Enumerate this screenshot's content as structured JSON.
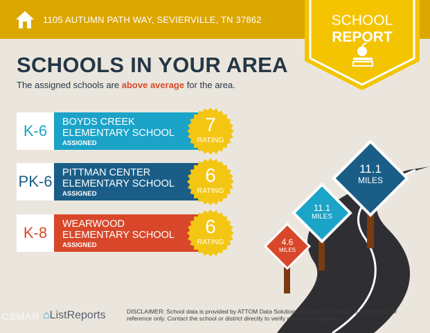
{
  "header": {
    "address": "1105 AUTUMN PATH WAY, SEVIERVILLE, TN 37862",
    "badge_line1": "SCHOOL",
    "badge_line2": "REPORT"
  },
  "title": "SCHOOLS IN YOUR AREA",
  "subtitle": {
    "before": "The assigned schools are ",
    "highlight": "above average",
    "after": " for the area."
  },
  "colors": {
    "header": "#dca600",
    "badge": "#f4c400",
    "row1": "#1ba3c8",
    "row2": "#1a5e88",
    "row3": "#d8472a",
    "seal": "#f3c614"
  },
  "schools": [
    {
      "grade": "K-6",
      "name1": "BOYDS CREEK",
      "name2": "ELEMENTARY SCHOOL",
      "status": "ASSIGNED",
      "rating": "7",
      "rating_label": "RATING",
      "distance": "11.1",
      "unit": "MILES"
    },
    {
      "grade": "PK-6",
      "name1": "PITTMAN CENTER",
      "name2": "ELEMENTARY SCHOOL",
      "status": "ASSIGNED",
      "rating": "6",
      "rating_label": "RATING",
      "distance": "11.1",
      "unit": "MILES"
    },
    {
      "grade": "K-8",
      "name1": "WEARWOOD",
      "name2": "ELEMENTARY SCHOOL",
      "status": "ASSIGNED",
      "rating": "6",
      "rating_label": "RATING",
      "distance": "4.6",
      "unit": "MILES"
    }
  ],
  "footer": {
    "logo": "ListReports",
    "watermark": "CSMAR",
    "disclaimer_label": "DISCLAIMER:",
    "disclaimer": " School data is provided by ATTOM Data Solutions and agent selection. It is intended for reference only. Contact the school or district directly to verify enrollment eligibility."
  }
}
